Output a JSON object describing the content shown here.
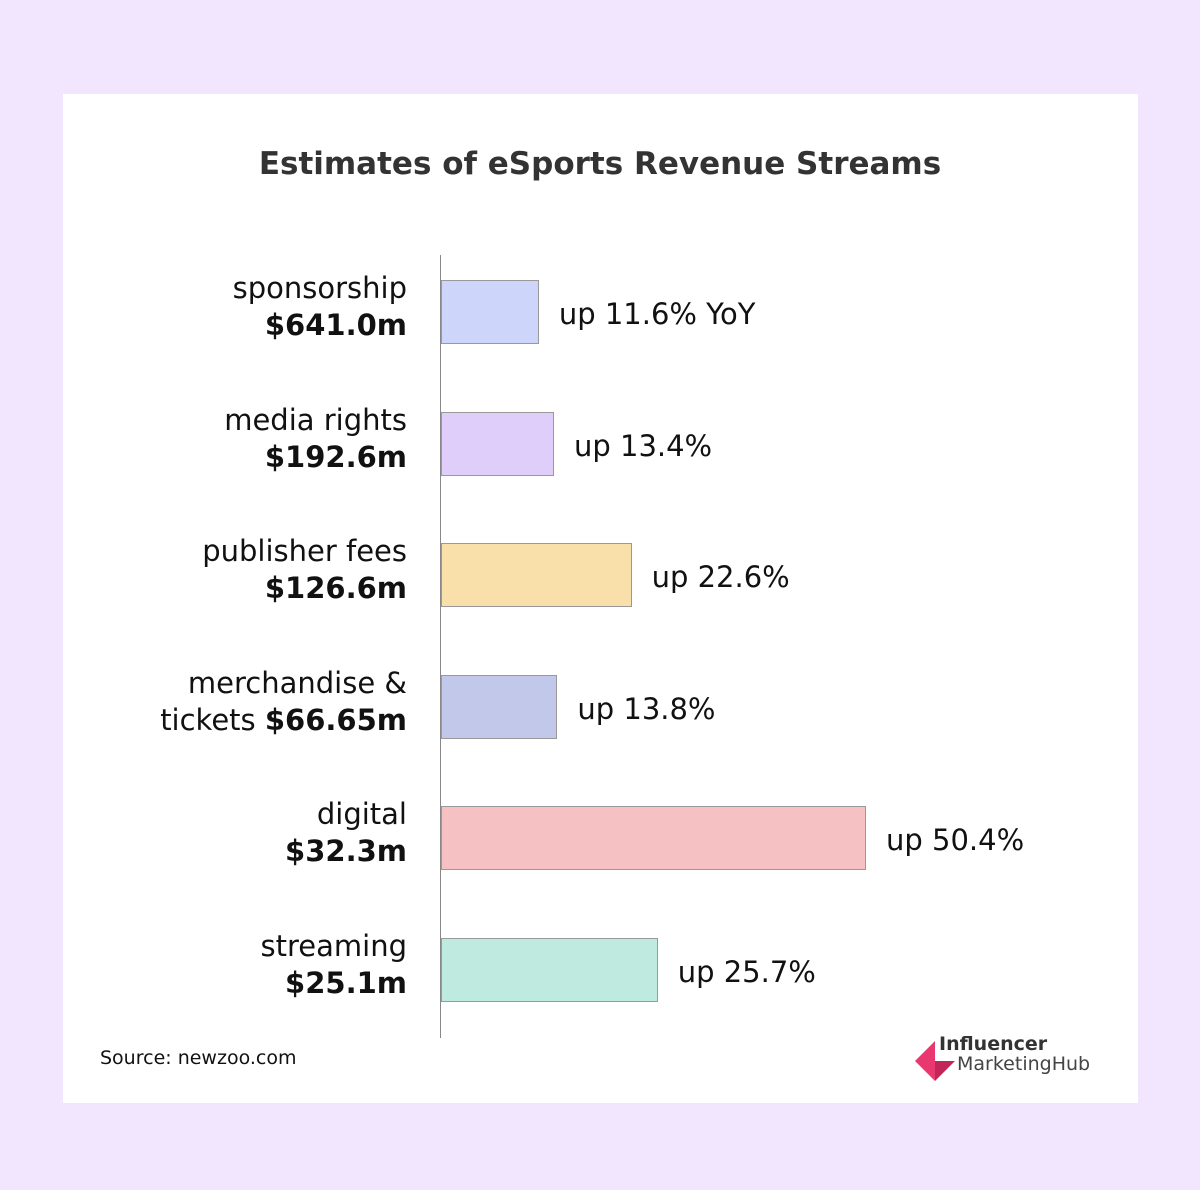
{
  "chart_data": {
    "type": "bar",
    "orientation": "horizontal",
    "title": "Estimates of eSports Revenue Streams",
    "categories": [
      "sponsorship",
      "media rights",
      "publisher fees",
      "merchandise &",
      "digital",
      "streaming"
    ],
    "category_line2_prefix": [
      "",
      "",
      "",
      "tickets ",
      "",
      ""
    ],
    "amounts": [
      "$641.0m",
      "$192.6m",
      "$126.6m",
      "$66.65m",
      "$32.3m",
      "$25.1m"
    ],
    "values": [
      11.6,
      13.4,
      22.6,
      13.8,
      50.4,
      25.7
    ],
    "value_labels": [
      "up 11.6% YoY",
      "up 13.4%",
      "up 22.6%",
      "up 13.8%",
      "up 50.4%",
      "up 25.7%"
    ],
    "colors": [
      "#cdd5fb",
      "#dfcdfa",
      "#f9e0aa",
      "#c2c8ea",
      "#f6c1c2",
      "#bfeadf"
    ],
    "grid": false
  },
  "source": "Source: newzoo.com",
  "logo": {
    "line1": "Influencer",
    "line2": "MarketingHub",
    "color": "#e8386f"
  }
}
